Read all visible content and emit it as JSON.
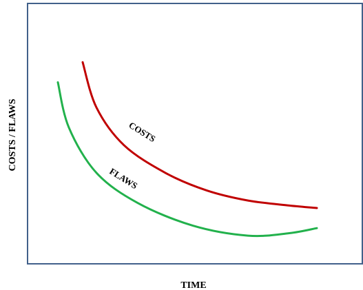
{
  "chart_data": {
    "type": "line",
    "title": "",
    "xlabel": "TIME",
    "ylabel": "COSTS / FLAWS",
    "grid": false,
    "frame_color": "#41608a",
    "series": [
      {
        "name": "COSTS",
        "color": "#c00000",
        "values_description": "decreasing curve",
        "x": [
          0.1,
          0.15,
          0.25,
          0.4,
          0.55,
          0.7,
          0.85,
          0.95
        ],
        "y": [
          0.78,
          0.6,
          0.45,
          0.34,
          0.27,
          0.23,
          0.21,
          0.2
        ]
      },
      {
        "name": "FLAWS",
        "color": "#22b14c",
        "x": [
          0.01,
          0.05,
          0.15,
          0.3,
          0.5,
          0.7,
          0.85,
          0.95
        ],
        "y": [
          0.7,
          0.52,
          0.34,
          0.22,
          0.13,
          0.09,
          0.1,
          0.12
        ]
      }
    ]
  }
}
